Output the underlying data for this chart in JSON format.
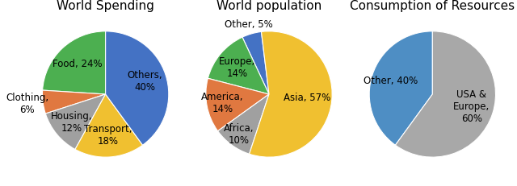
{
  "chart1_title": "World Spending",
  "chart1_labels": [
    "Food, 24%",
    "Clothing,\n6%",
    "Housing,\n12%",
    "Transport,\n18%",
    "Others,\n40%"
  ],
  "chart1_values": [
    24,
    6,
    12,
    18,
    40
  ],
  "chart1_colors": [
    "#4CAF50",
    "#E07840",
    "#A0A0A0",
    "#F0C030",
    "#4472C4"
  ],
  "chart1_startangle": 90,
  "chart1_label_distances": [
    0.65,
    1.25,
    0.7,
    0.65,
    0.65
  ],
  "chart2_title": "World population",
  "chart2_labels": [
    "Other, 5%",
    "Europe,\n14%",
    "America,\n14%",
    "Africa,\n10%",
    "Asia, 57%"
  ],
  "chart2_values": [
    5,
    14,
    14,
    10,
    57
  ],
  "chart2_colors": [
    "#4472C4",
    "#4CAF50",
    "#E07840",
    "#A0A0A0",
    "#F0C030"
  ],
  "chart2_startangle": 97,
  "chart2_label_distances": [
    1.15,
    0.65,
    0.75,
    0.8,
    0.6
  ],
  "chart3_title": "Consumption of Resources",
  "chart3_labels": [
    "Other, 40%",
    "USA &\nEurope,\n60%"
  ],
  "chart3_values": [
    40,
    60
  ],
  "chart3_colors": [
    "#4E8EC4",
    "#A8A8A8"
  ],
  "chart3_startangle": 90,
  "chart3_label_distances": [
    0.7,
    0.65
  ],
  "bg_color": "#FFFFFF",
  "label_fontsize": 8.5,
  "title_fontsize": 11
}
